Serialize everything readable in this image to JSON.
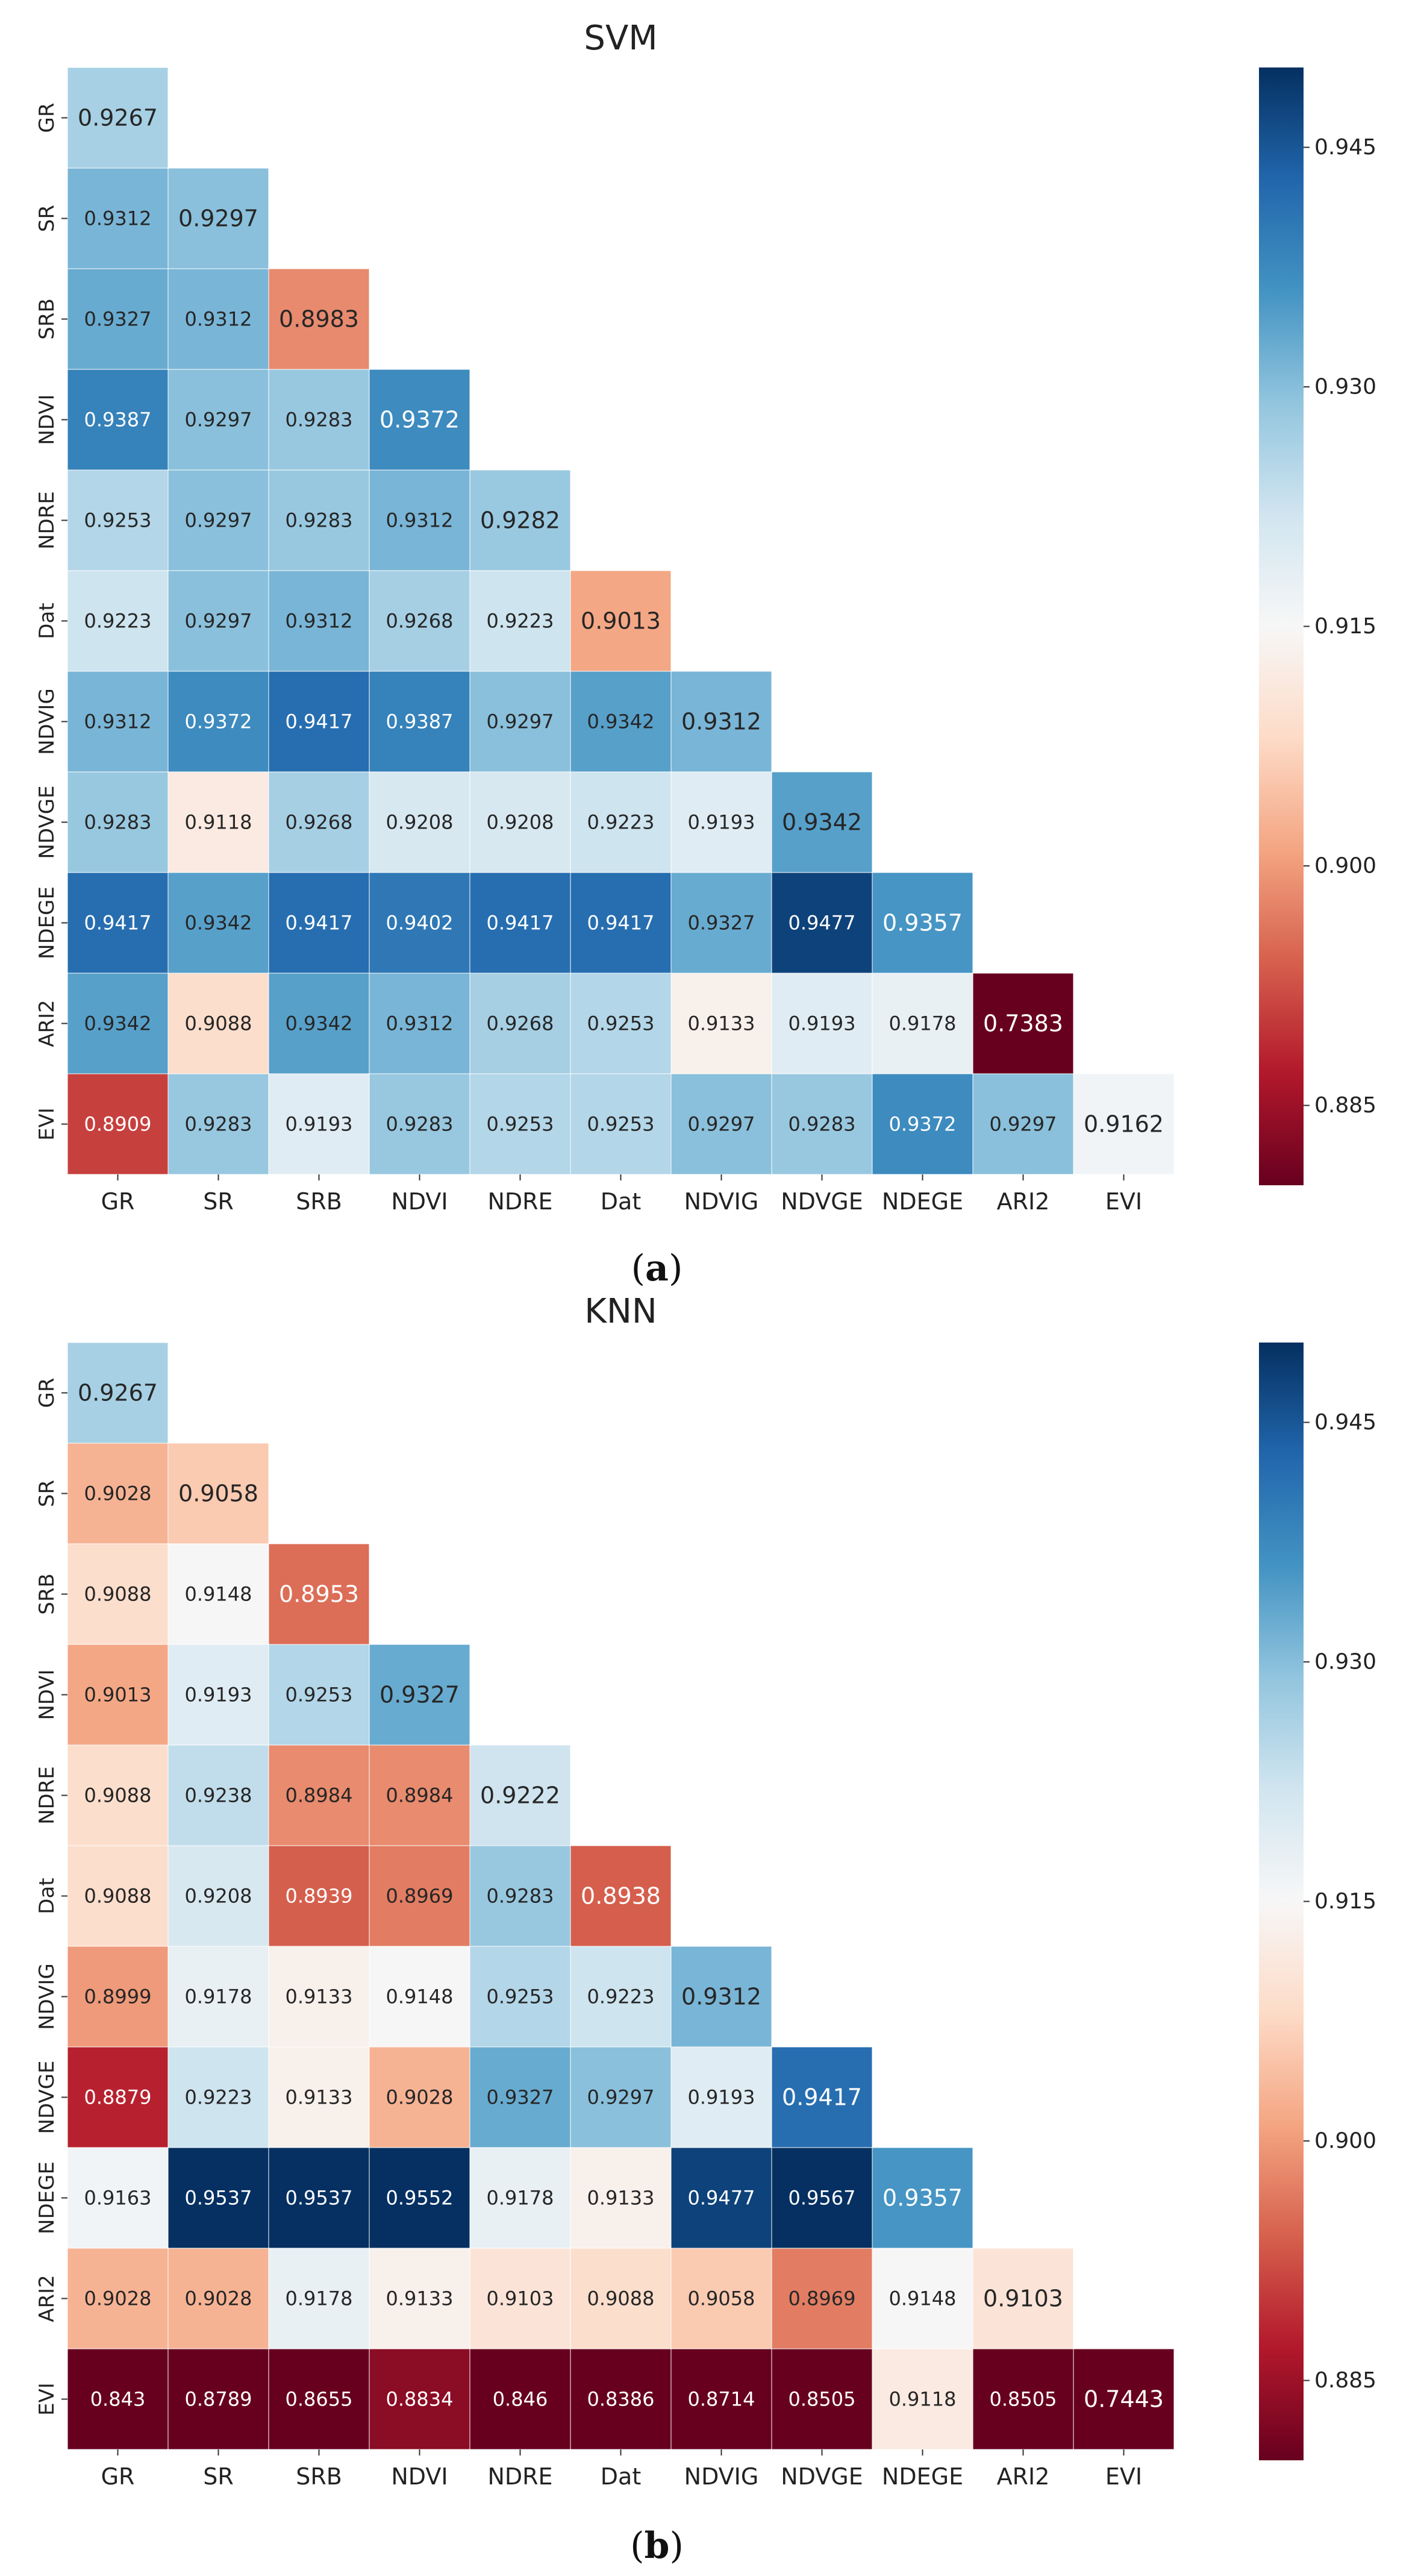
{
  "chart_data": [
    {
      "type": "heatmap",
      "panel_label": "a",
      "title": "SVM",
      "labels": [
        "GR",
        "SR",
        "SRB",
        "NDVI",
        "NDRE",
        "Dat",
        "NDVIG",
        "NDVGE",
        "NDEGE",
        "ARI2",
        "EVI"
      ],
      "values": [
        [
          0.9267
        ],
        [
          0.9312,
          0.9297
        ],
        [
          0.9327,
          0.9312,
          0.8983
        ],
        [
          0.9387,
          0.9297,
          0.9283,
          0.9372
        ],
        [
          0.9253,
          0.9297,
          0.9283,
          0.9312,
          0.9282
        ],
        [
          0.9223,
          0.9297,
          0.9312,
          0.9268,
          0.9223,
          0.9013
        ],
        [
          0.9312,
          0.9372,
          0.9417,
          0.9387,
          0.9297,
          0.9342,
          0.9312
        ],
        [
          0.9283,
          0.9118,
          0.9268,
          0.9208,
          0.9208,
          0.9223,
          0.9193,
          0.9342
        ],
        [
          0.9417,
          0.9342,
          0.9417,
          0.9402,
          0.9417,
          0.9417,
          0.9327,
          0.9477,
          0.9357
        ],
        [
          0.9342,
          0.9088,
          0.9342,
          0.9312,
          0.9268,
          0.9253,
          0.9133,
          0.9193,
          0.9178,
          0.7383
        ],
        [
          0.8909,
          0.9283,
          0.9193,
          0.9283,
          0.9253,
          0.9253,
          0.9297,
          0.9283,
          0.9372,
          0.9297,
          0.9162
        ]
      ],
      "colorbar": {
        "min": 0.88,
        "max": 0.95,
        "ticks": [
          "0.945",
          "0.930",
          "0.915",
          "0.900",
          "0.885"
        ],
        "colormap": "RdBu"
      }
    },
    {
      "type": "heatmap",
      "panel_label": "b",
      "title": "KNN",
      "labels": [
        "GR",
        "SR",
        "SRB",
        "NDVI",
        "NDRE",
        "Dat",
        "NDVIG",
        "NDVGE",
        "NDEGE",
        "ARI2",
        "EVI"
      ],
      "values": [
        [
          0.9267
        ],
        [
          0.9028,
          0.9058
        ],
        [
          0.9088,
          0.9148,
          0.8953
        ],
        [
          0.9013,
          0.9193,
          0.9253,
          0.9327
        ],
        [
          0.9088,
          0.9238,
          0.8984,
          0.8984,
          0.9222
        ],
        [
          0.9088,
          0.9208,
          0.8939,
          0.8969,
          0.9283,
          0.8938
        ],
        [
          0.8999,
          0.9178,
          0.9133,
          0.9148,
          0.9253,
          0.9223,
          0.9312
        ],
        [
          0.8879,
          0.9223,
          0.9133,
          0.9028,
          0.9327,
          0.9297,
          0.9193,
          0.9417
        ],
        [
          0.9163,
          0.9537,
          0.9537,
          0.9552,
          0.9178,
          0.9133,
          0.9477,
          0.9567,
          0.9357
        ],
        [
          0.9028,
          0.9028,
          0.9178,
          0.9133,
          0.9103,
          0.9088,
          0.9058,
          0.8969,
          0.9148,
          0.9103
        ],
        [
          0.843,
          0.8789,
          0.8655,
          0.8834,
          0.846,
          0.8386,
          0.8714,
          0.8505,
          0.9118,
          0.8505,
          0.7443
        ]
      ],
      "colorbar": {
        "min": 0.88,
        "max": 0.95,
        "ticks": [
          "0.945",
          "0.930",
          "0.915",
          "0.900",
          "0.885"
        ],
        "colormap": "RdBu"
      }
    }
  ]
}
